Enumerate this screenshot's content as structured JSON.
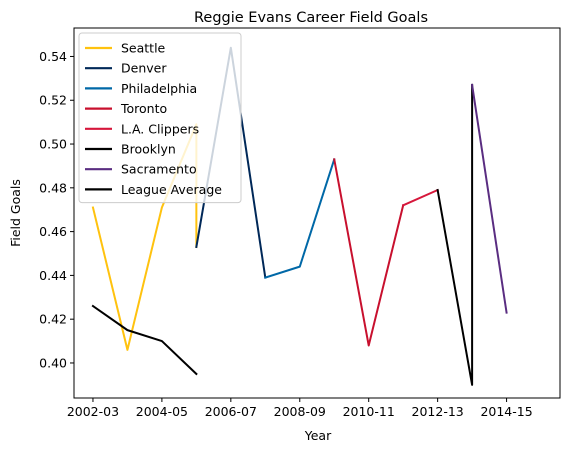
{
  "chart_data": {
    "type": "line",
    "title": "Reggie Evans Career Field Goals",
    "xlabel": "Year",
    "ylabel": "Field Goals",
    "xlim": [
      2001.45,
      2015.55
    ],
    "ylim": [
      0.384,
      0.553
    ],
    "x_ticks": [
      2002,
      2004,
      2006,
      2008,
      2010,
      2012,
      2014
    ],
    "x_tick_labels": [
      "2002-03",
      "2004-05",
      "2006-07",
      "2008-09",
      "2010-11",
      "2012-13",
      "2014-15"
    ],
    "y_ticks": [
      0.4,
      0.42,
      0.44,
      0.46,
      0.48,
      0.5,
      0.52,
      0.54
    ],
    "y_tick_labels": [
      "0.40",
      "0.42",
      "0.44",
      "0.46",
      "0.48",
      "0.50",
      "0.52",
      "0.54"
    ],
    "grid": false,
    "legend_position": "top-left",
    "series": [
      {
        "name": "Seattle",
        "color": "#FFC20E",
        "x": [
          2002,
          2003,
          2004,
          2005,
          2005
        ],
        "y": [
          0.471,
          0.406,
          0.471,
          0.509,
          0.453
        ]
      },
      {
        "name": "Denver",
        "color": "#002858",
        "x": [
          2005,
          2006,
          2007
        ],
        "y": [
          0.453,
          0.544,
          0.439
        ]
      },
      {
        "name": "Philadelphia",
        "color": "#0068A7",
        "x": [
          2007,
          2008,
          2009
        ],
        "y": [
          0.439,
          0.444,
          0.493
        ]
      },
      {
        "name": "Toronto",
        "color": "#C8102E",
        "x": [
          2009,
          2010,
          2011
        ],
        "y": [
          0.493,
          0.408,
          0.472
        ]
      },
      {
        "name": "L.A. Clippers",
        "color": "#D6173B",
        "x": [
          2011,
          2012
        ],
        "y": [
          0.472,
          0.479
        ]
      },
      {
        "name": "Brooklyn",
        "color": "#000000",
        "x": [
          2012,
          2013,
          2013
        ],
        "y": [
          0.479,
          0.39,
          0.527
        ]
      },
      {
        "name": "Sacramento",
        "color": "#5A2D81",
        "x": [
          2013,
          2014
        ],
        "y": [
          0.527,
          0.423
        ]
      },
      {
        "name": "League Average",
        "color": "#000000",
        "x": [
          2002,
          2003,
          2004,
          2005
        ],
        "y": [
          0.426,
          0.415,
          0.41,
          0.395
        ]
      }
    ]
  }
}
